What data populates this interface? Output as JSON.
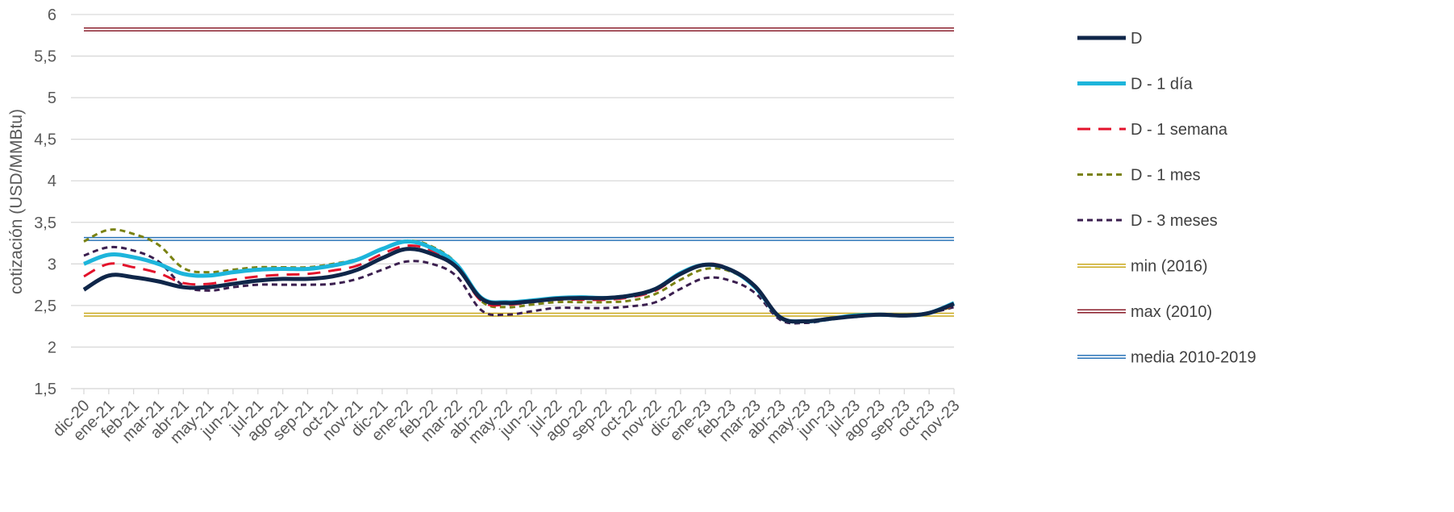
{
  "chart_data": {
    "type": "line",
    "ylabel": "cotización (USD/MMBtu)",
    "xlabel": "",
    "ylim": [
      1.5,
      6
    ],
    "yticks": [
      "1,5",
      "2",
      "2,5",
      "3",
      "3,5",
      "4",
      "4,5",
      "5",
      "5,5",
      "6"
    ],
    "grid": true,
    "legend_position": "right",
    "categories": [
      "dic-20",
      "ene-21",
      "feb-21",
      "mar-21",
      "abr-21",
      "may-21",
      "jun-21",
      "jul-21",
      "ago-21",
      "sep-21",
      "oct-21",
      "nov-21",
      "dic-21",
      "ene-22",
      "feb-22",
      "mar-22",
      "abr-22",
      "may-22",
      "jun-22",
      "jul-22",
      "ago-22",
      "sep-22",
      "oct-22",
      "nov-22",
      "dic-22",
      "ene-23",
      "feb-23",
      "mar-23",
      "abr-23",
      "may-23",
      "jun-23",
      "jul-23",
      "ago-23",
      "sep-23",
      "oct-23",
      "nov-23"
    ],
    "series": [
      {
        "name": "D - 3 meses",
        "color": "#3b1f4f",
        "style": "dotted",
        "values": [
          3.1,
          3.2,
          3.16,
          3.03,
          2.74,
          2.68,
          2.72,
          2.75,
          2.75,
          2.75,
          2.76,
          2.82,
          2.93,
          3.03,
          3.0,
          2.85,
          2.44,
          2.39,
          2.43,
          2.47,
          2.47,
          2.47,
          2.49,
          2.54,
          2.7,
          2.83,
          2.8,
          2.65,
          2.33,
          2.29,
          2.33,
          2.37,
          2.39,
          2.39,
          2.41,
          2.48
        ]
      },
      {
        "name": "D - 1 mes",
        "color": "#7a8212",
        "style": "dotted",
        "values": [
          3.27,
          3.41,
          3.36,
          3.23,
          2.95,
          2.9,
          2.93,
          2.96,
          2.96,
          2.96,
          3.0,
          3.06,
          3.18,
          3.28,
          3.21,
          3.0,
          2.55,
          2.48,
          2.51,
          2.54,
          2.54,
          2.54,
          2.56,
          2.64,
          2.81,
          2.94,
          2.91,
          2.72,
          2.35,
          2.31,
          2.34,
          2.38,
          2.39,
          2.38,
          2.41,
          2.49
        ]
      },
      {
        "name": "D - 1 semana",
        "color": "#e3122b",
        "style": "dashed",
        "values": [
          2.85,
          3.0,
          2.96,
          2.89,
          2.77,
          2.76,
          2.81,
          2.85,
          2.87,
          2.88,
          2.92,
          2.98,
          3.12,
          3.22,
          3.16,
          2.96,
          2.55,
          2.51,
          2.54,
          2.57,
          2.57,
          2.57,
          2.6,
          2.68,
          2.87,
          3.0,
          2.94,
          2.72,
          2.35,
          2.31,
          2.34,
          2.38,
          2.39,
          2.37,
          2.41,
          2.5
        ]
      },
      {
        "name": "D - 1 día",
        "color": "#1db5db",
        "style": "solid",
        "values": [
          3.0,
          3.11,
          3.08,
          3.0,
          2.88,
          2.86,
          2.9,
          2.93,
          2.94,
          2.94,
          2.98,
          3.05,
          3.18,
          3.27,
          3.19,
          2.99,
          2.59,
          2.54,
          2.56,
          2.59,
          2.6,
          2.59,
          2.62,
          2.7,
          2.89,
          2.99,
          2.93,
          2.72,
          2.36,
          2.31,
          2.34,
          2.38,
          2.39,
          2.38,
          2.41,
          2.53
        ]
      },
      {
        "name": "D",
        "color": "#0f2649",
        "style": "solid",
        "values": [
          2.69,
          2.86,
          2.84,
          2.79,
          2.72,
          2.72,
          2.76,
          2.8,
          2.82,
          2.82,
          2.85,
          2.93,
          3.07,
          3.18,
          3.12,
          2.96,
          2.58,
          2.53,
          2.55,
          2.58,
          2.59,
          2.59,
          2.62,
          2.7,
          2.88,
          2.99,
          2.93,
          2.73,
          2.36,
          2.31,
          2.34,
          2.37,
          2.39,
          2.38,
          2.41,
          2.52
        ]
      }
    ],
    "reference_lines": [
      {
        "name": "min (2016)",
        "color": "#c9a81b",
        "value": 2.39
      },
      {
        "name": "max (2010)",
        "color": "#8a1e2b",
        "value": 5.82
      },
      {
        "name": "media 2010-2019",
        "color": "#2a74b8",
        "value": 3.3
      }
    ],
    "legend": [
      "D",
      "D - 1 día",
      "D - 1 semana",
      "D - 1 mes",
      "D - 3 meses",
      "min (2016)",
      "max (2010)",
      "media 2010-2019"
    ]
  }
}
